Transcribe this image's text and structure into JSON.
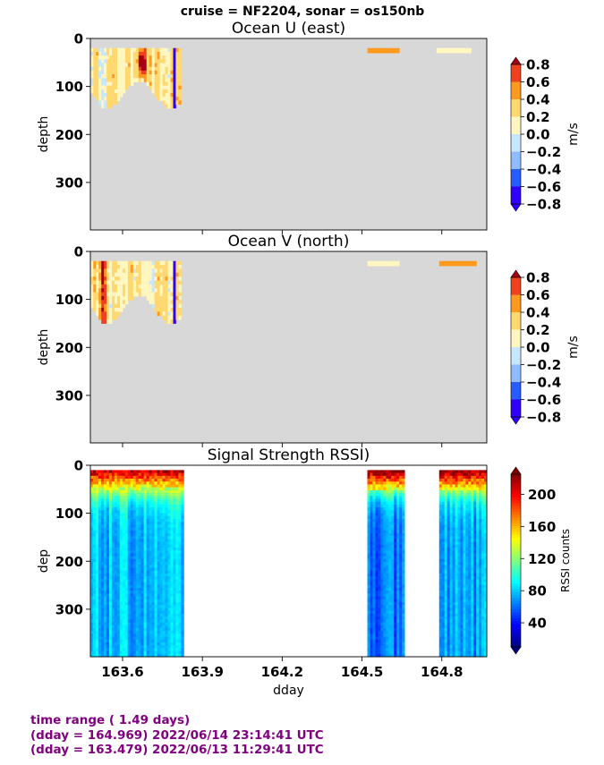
{
  "suptitle": "cruise = NF2204,  sonar = os150nb",
  "footer": {
    "line1": "time range ( 1.49 days)",
    "line2": "(dday = 164.969) 2022/06/14 23:14:41 UTC",
    "line3": "(dday = 163.479) 2022/06/13 11:29:41 UTC"
  },
  "colors": {
    "nodata": "#d8d8d8",
    "footer_text": "#800080",
    "ocean_levels": [
      "#2e00ff",
      "#285cff",
      "#8ebcff",
      "#c7e6ff",
      "#fff6c0",
      "#ffd970",
      "#ff9a1f",
      "#ef4020",
      "#a60017"
    ]
  },
  "chart_data": [
    {
      "type": "heatmap",
      "title": "Ocean U (east)",
      "xlabel": "",
      "ylabel": "depth",
      "xlim": [
        163.479,
        164.969
      ],
      "ylim": [
        399,
        0
      ],
      "xticks": [
        163.6,
        163.9,
        164.2,
        164.5,
        164.8
      ],
      "yticks": [
        0,
        100,
        200,
        300
      ],
      "colorbar": {
        "label": "m/s",
        "ticks": [
          "0.8",
          "0.6",
          "0.4",
          "0.2",
          "0.0",
          "−0.2",
          "−0.4",
          "−0.6",
          "−0.8"
        ],
        "range": [
          -0.8,
          0.8
        ]
      },
      "segments": [
        {
          "x": [
            163.48,
            163.82
          ],
          "depth": [
            20,
            145
          ],
          "range": [
            -0.5,
            0.9
          ],
          "note": "strong positive core near 163.66"
        },
        {
          "x": [
            164.52,
            164.64
          ],
          "depth": [
            20,
            30
          ],
          "value": 0.3
        },
        {
          "x": [
            164.78,
            164.91
          ],
          "depth": [
            20,
            30
          ],
          "value": -0.1
        }
      ]
    },
    {
      "type": "heatmap",
      "title": "Ocean V (north)",
      "xlabel": "",
      "ylabel": "depth",
      "xlim": [
        163.479,
        164.969
      ],
      "ylim": [
        399,
        0
      ],
      "xticks": [
        163.6,
        163.9,
        164.2,
        164.5,
        164.8
      ],
      "yticks": [
        0,
        100,
        200,
        300
      ],
      "colorbar": {
        "label": "m/s",
        "ticks": [
          "0.8",
          "0.6",
          "0.4",
          "0.2",
          "0.0",
          "−0.2",
          "−0.4",
          "−0.6",
          "−0.8"
        ],
        "range": [
          -0.8,
          0.8
        ]
      },
      "segments": [
        {
          "x": [
            163.48,
            163.82
          ],
          "depth": [
            20,
            150
          ],
          "range": [
            -0.8,
            0.9
          ]
        },
        {
          "x": [
            164.52,
            164.64
          ],
          "depth": [
            20,
            30
          ],
          "value": -0.1
        },
        {
          "x": [
            164.79,
            164.93
          ],
          "depth": [
            20,
            30
          ],
          "value": 0.3
        }
      ]
    },
    {
      "type": "heatmap",
      "title": "Signal Strength RSSI)",
      "xlabel": "dday",
      "ylabel": "dep",
      "xlim": [
        163.479,
        164.969
      ],
      "ylim": [
        399,
        0
      ],
      "xticks": [
        163.6,
        163.9,
        164.2,
        164.5,
        164.8
      ],
      "xticklabels": [
        "163.6",
        "163.9",
        "164.2",
        "164.5",
        "164.8"
      ],
      "yticks": [
        0,
        100,
        200,
        300
      ],
      "colorbar": {
        "label": "RSSI counts",
        "ticks": [
          "200",
          "160",
          "120",
          "80",
          "40"
        ],
        "range": [
          10,
          225
        ]
      },
      "segments": [
        {
          "x": [
            163.479,
            163.83
          ],
          "depth": [
            10,
            399
          ],
          "surface": 210,
          "deep": 75
        },
        {
          "x": [
            164.52,
            164.66
          ],
          "depth": [
            10,
            399
          ],
          "surface": 220,
          "deep": 60
        },
        {
          "x": [
            164.79,
            164.969
          ],
          "depth": [
            10,
            399
          ],
          "surface": 220,
          "deep": 70
        }
      ]
    }
  ]
}
